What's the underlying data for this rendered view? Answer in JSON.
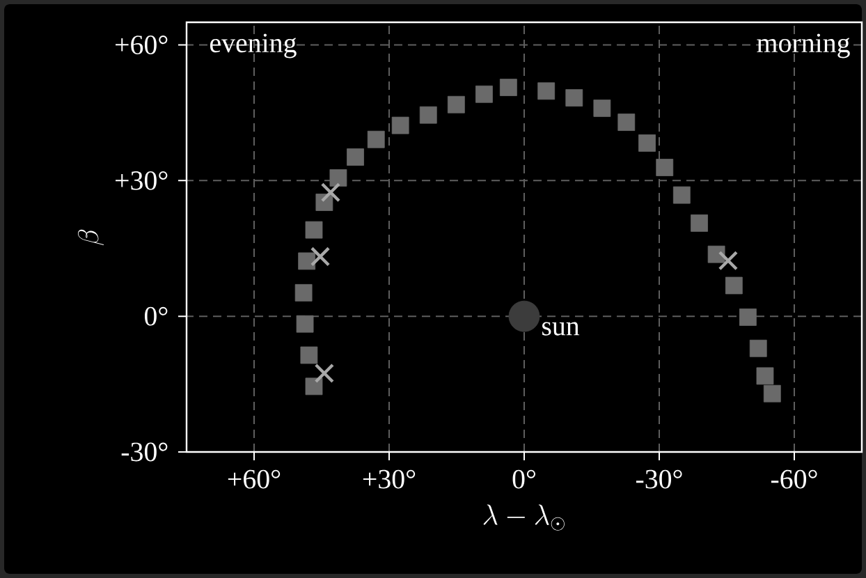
{
  "chart_data": {
    "type": "scatter",
    "xlabel": "\\lambda - \\lambda_\\odot",
    "ylabel": "\\beta",
    "xlim": [
      75,
      -75
    ],
    "ylim": [
      -30,
      65
    ],
    "xticks": [
      {
        "value": 60,
        "label": "+60°"
      },
      {
        "value": 30,
        "label": "+30°"
      },
      {
        "value": 0,
        "label": "0°"
      },
      {
        "value": -30,
        "label": "-30°"
      },
      {
        "value": -60,
        "label": "-60°"
      }
    ],
    "yticks": [
      {
        "value": -30,
        "label": "-30°"
      },
      {
        "value": 0,
        "label": "0°"
      },
      {
        "value": 30,
        "label": "+30°"
      },
      {
        "value": 60,
        "label": "+60°"
      }
    ],
    "grid": true,
    "series": [
      {
        "color": "#6a6a6a",
        "marker": "square",
        "x": [
          46.7,
          47.8,
          48.7,
          49.0,
          48.3,
          46.7,
          44.4,
          41.3,
          37.5,
          32.9,
          27.5,
          21.3,
          15.1,
          8.9,
          3.5,
          -4.9,
          -11.1,
          -17.3,
          -22.7,
          -27.3,
          -31.2,
          -35.0,
          -38.9,
          -42.7,
          -46.6,
          -49.7,
          -52.0,
          -53.5,
          -55.1
        ],
        "values": [
          -15.5,
          -8.6,
          -1.7,
          5.2,
          12.2,
          19.1,
          25.2,
          30.6,
          35.2,
          39.1,
          42.2,
          44.5,
          46.8,
          49.1,
          50.6,
          49.8,
          48.3,
          46.0,
          42.9,
          38.3,
          32.9,
          26.8,
          20.6,
          13.7,
          6.8,
          -0.2,
          -7.1,
          -13.2,
          -17.1
        ]
      },
      {
        "color": "#a8a8a8",
        "marker": "cross",
        "x": [
          43.0,
          45.3,
          44.4,
          -45.3
        ],
        "values": [
          27.4,
          13.2,
          -12.6,
          12.3
        ]
      },
      {
        "color": "#3c3c3c",
        "marker": "circle",
        "x": [
          0
        ],
        "values": [
          0
        ]
      }
    ],
    "annotations": [
      "evening",
      "morning",
      {
        "text": "sun",
        "x": 0,
        "y": 0
      }
    ]
  }
}
